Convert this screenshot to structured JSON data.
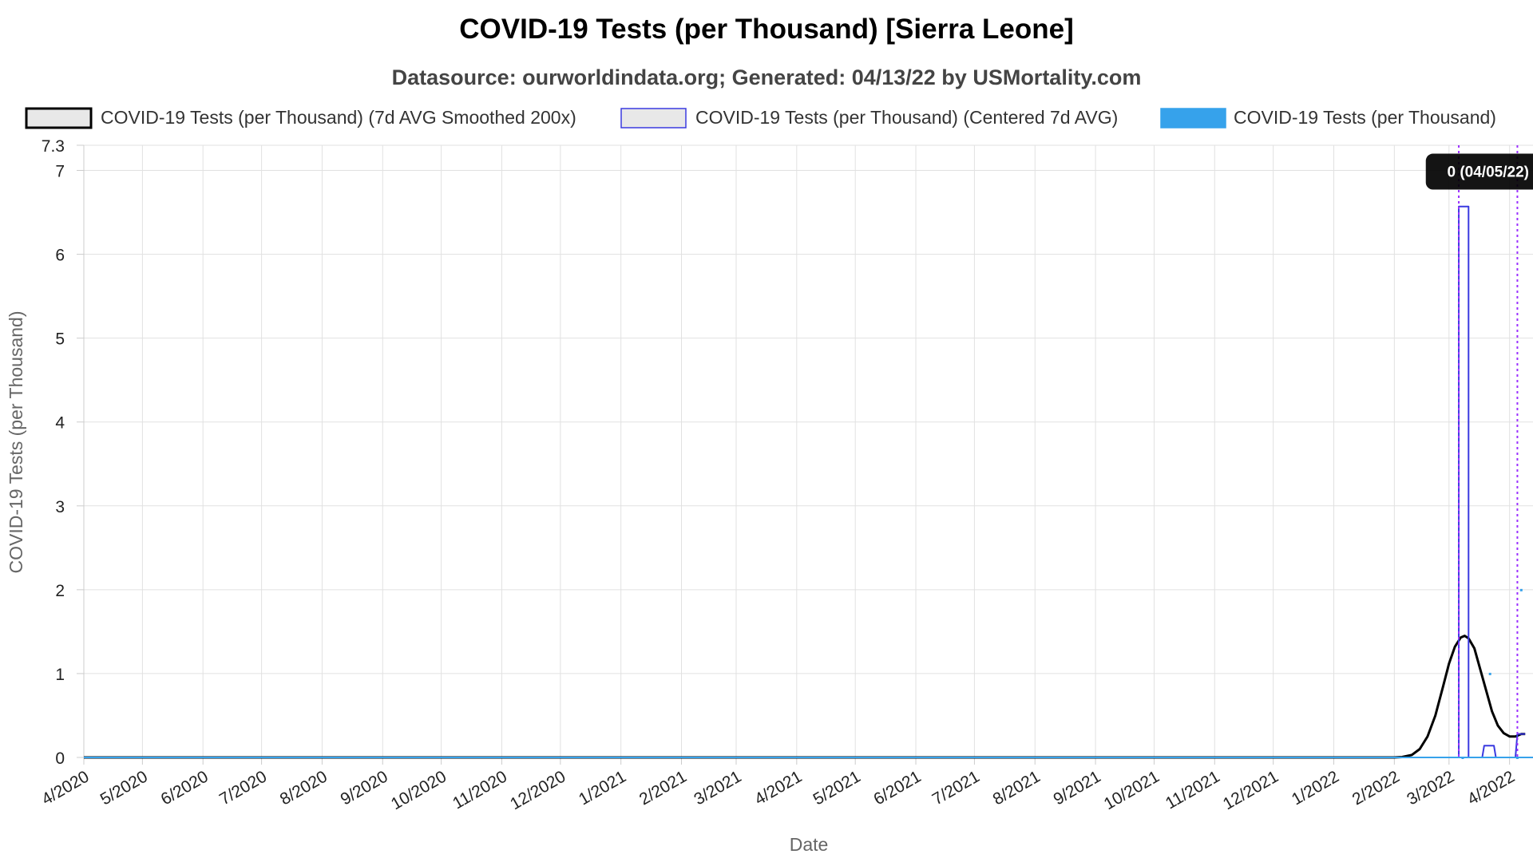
{
  "chart_data": {
    "type": "line",
    "title": "COVID-19 Tests (per Thousand) [Sierra Leone]",
    "subtitle": "Datasource: ourworldindata.org; Generated: 04/13/22 by USMortality.com",
    "xlabel": "Date",
    "ylabel": "COVID-19 Tests (per Thousand)",
    "ylim": [
      0,
      7.3
    ],
    "y_ticks": [
      "0",
      "1",
      "2",
      "3",
      "4",
      "5",
      "6",
      "7",
      "7.3"
    ],
    "x_range": [
      "2020-04-01",
      "2022-04-13"
    ],
    "x_ticks": [
      {
        "label": "4/2020",
        "date": "2020-04-01"
      },
      {
        "label": "5/2020",
        "date": "2020-05-01"
      },
      {
        "label": "6/2020",
        "date": "2020-06-01"
      },
      {
        "label": "7/2020",
        "date": "2020-07-01"
      },
      {
        "label": "8/2020",
        "date": "2020-08-01"
      },
      {
        "label": "9/2020",
        "date": "2020-09-01"
      },
      {
        "label": "10/2020",
        "date": "2020-10-01"
      },
      {
        "label": "11/2020",
        "date": "2020-11-01"
      },
      {
        "label": "12/2020",
        "date": "2020-12-01"
      },
      {
        "label": "1/2021",
        "date": "2021-01-01"
      },
      {
        "label": "2/2021",
        "date": "2021-02-01"
      },
      {
        "label": "3/2021",
        "date": "2021-03-01"
      },
      {
        "label": "4/2021",
        "date": "2021-04-01"
      },
      {
        "label": "5/2021",
        "date": "2021-05-01"
      },
      {
        "label": "6/2021",
        "date": "2021-06-01"
      },
      {
        "label": "7/2021",
        "date": "2021-07-01"
      },
      {
        "label": "8/2021",
        "date": "2021-08-01"
      },
      {
        "label": "9/2021",
        "date": "2021-09-01"
      },
      {
        "label": "10/2021",
        "date": "2021-10-01"
      },
      {
        "label": "11/2021",
        "date": "2021-11-01"
      },
      {
        "label": "12/2021",
        "date": "2021-12-01"
      },
      {
        "label": "1/2022",
        "date": "2022-01-01"
      },
      {
        "label": "2/2022",
        "date": "2022-02-01"
      },
      {
        "label": "3/2022",
        "date": "2022-03-01"
      },
      {
        "label": "4/2022",
        "date": "2022-04-01"
      }
    ],
    "grid": true,
    "legend_position": "top",
    "series": [
      {
        "name": "COVID-19 Tests (per Thousand) (7d AVG Smoothed 200x)",
        "color": "#000000",
        "legend_fill": "#e8e8e8",
        "style": "line",
        "points": [
          [
            "2020-04-01",
            0
          ],
          [
            "2022-02-01",
            0
          ],
          [
            "2022-02-05",
            0.005
          ],
          [
            "2022-02-10",
            0.03
          ],
          [
            "2022-02-14",
            0.1
          ],
          [
            "2022-02-18",
            0.25
          ],
          [
            "2022-02-22",
            0.5
          ],
          [
            "2022-02-26",
            0.85
          ],
          [
            "2022-03-01",
            1.12
          ],
          [
            "2022-03-04",
            1.32
          ],
          [
            "2022-03-07",
            1.43
          ],
          [
            "2022-03-09",
            1.45
          ],
          [
            "2022-03-11",
            1.42
          ],
          [
            "2022-03-14",
            1.3
          ],
          [
            "2022-03-17",
            1.05
          ],
          [
            "2022-03-20",
            0.8
          ],
          [
            "2022-03-23",
            0.55
          ],
          [
            "2022-03-26",
            0.38
          ],
          [
            "2022-03-29",
            0.29
          ],
          [
            "2022-04-01",
            0.25
          ],
          [
            "2022-04-04",
            0.25
          ],
          [
            "2022-04-07",
            0.28
          ],
          [
            "2022-04-09",
            0.28
          ]
        ]
      },
      {
        "name": "COVID-19 Tests (per Thousand) (Centered 7d AVG)",
        "color": "#3a3ae0",
        "legend_fill": "#e8e8e8",
        "style": "line",
        "points": [
          [
            "2020-04-01",
            0
          ],
          [
            "2022-03-06",
            0
          ],
          [
            "2022-03-06",
            6.57
          ],
          [
            "2022-03-11",
            6.57
          ],
          [
            "2022-03-11",
            0
          ],
          [
            "2022-03-18",
            0
          ],
          [
            "2022-03-19",
            0.14
          ],
          [
            "2022-03-24",
            0.14
          ],
          [
            "2022-03-25",
            0
          ],
          [
            "2022-04-04",
            0
          ],
          [
            "2022-04-05",
            0.28
          ],
          [
            "2022-04-09",
            0.28
          ]
        ]
      },
      {
        "name": "COVID-19 Tests (per Thousand)",
        "color": "#36a2eb",
        "legend_fill": "#36a2eb",
        "style": "bar",
        "points": [
          [
            "2022-03-08",
            0
          ],
          [
            "2022-03-22",
            1
          ],
          [
            "2022-04-05",
            0
          ],
          [
            "2022-04-07",
            2
          ]
        ]
      }
    ],
    "annotations": [
      {
        "type": "vline",
        "date": "2022-03-06",
        "color": "#9b30ff"
      },
      {
        "type": "vline",
        "date": "2022-04-05",
        "color": "#9b30ff"
      }
    ],
    "tooltip": {
      "text": "0 (04/05/22)",
      "date": "2022-03-21",
      "value": 7.0
    }
  }
}
